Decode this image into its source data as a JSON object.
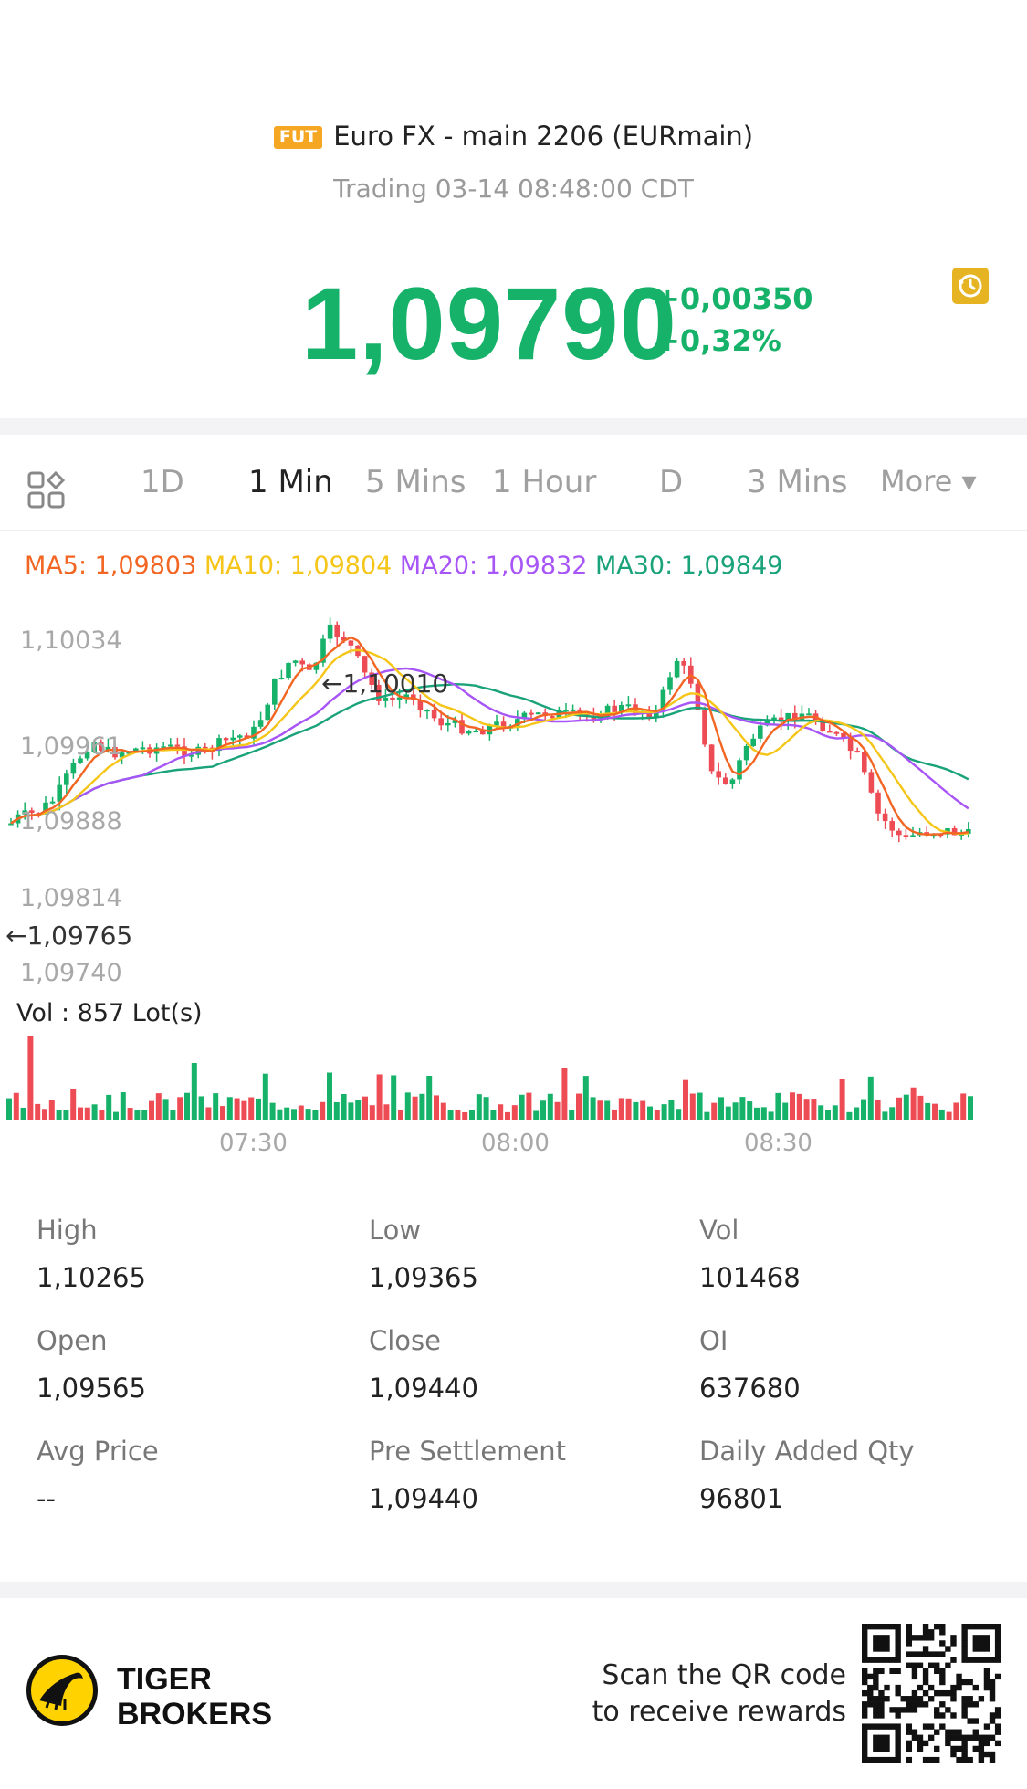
{
  "header": {
    "badge": "FUT",
    "title": "Euro FX - main 2206 (EURmain)",
    "subtitle": "Trading 03-14 08:48:00 CDT",
    "price": "1,09790",
    "change_abs": "+0,00350",
    "change_pct": "+0,32%",
    "price_color": "#17b26a"
  },
  "tabs": {
    "items": [
      {
        "label": "1D",
        "active": false
      },
      {
        "label": "1 Min",
        "active": true
      },
      {
        "label": "5 Mins",
        "active": false
      },
      {
        "label": "1 Hour",
        "active": false
      },
      {
        "label": "D",
        "active": false
      },
      {
        "label": "3 Mins",
        "active": false
      },
      {
        "label": "More ▾",
        "active": false
      }
    ]
  },
  "indicators": {
    "ma5": "MA5: 1,09803",
    "ma10": "MA10: 1,09804",
    "ma20": "MA20: 1,09832",
    "ma30": "MA30: 1,09849",
    "colors": {
      "ma5": "#f26522",
      "ma10": "#f5c518",
      "ma20": "#a855f7",
      "ma30": "#1aa37a"
    }
  },
  "chart": {
    "y_labels": [
      "1,10034",
      "1,09961",
      "1,09888",
      "1,09814",
      "1,09740"
    ],
    "max_marker": "←1,10010",
    "min_marker": "←1,09765",
    "vol_label": "Vol  : 857 Lot(s)",
    "x_labels": [
      "07:30",
      "08:00",
      "08:30"
    ],
    "up_color": "#17b26a",
    "down_color": "#ee4c55"
  },
  "stats": {
    "items": [
      {
        "label": "High",
        "value": "1,10265"
      },
      {
        "label": "Low",
        "value": "1,09365"
      },
      {
        "label": "Vol",
        "value": "101468"
      },
      {
        "label": "Open",
        "value": "1,09565"
      },
      {
        "label": "Close",
        "value": "1,09440"
      },
      {
        "label": "OI",
        "value": "637680"
      },
      {
        "label": "Avg Price",
        "value": "--"
      },
      {
        "label": "Pre Settlement",
        "value": "1,09440"
      },
      {
        "label": "Daily Added Qty",
        "value": "96801"
      }
    ]
  },
  "footer": {
    "brand_line1": "TIGER",
    "brand_line2": "BROKERS",
    "scan_line1": "Scan the QR code",
    "scan_line2": "to receive rewards"
  }
}
